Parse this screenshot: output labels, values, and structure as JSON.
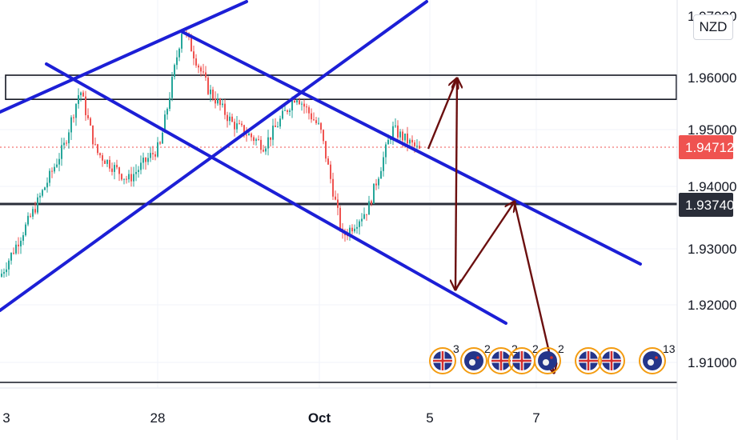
{
  "symbol_currency": "NZD",
  "colors": {
    "up": "#26a69a",
    "down": "#ef5350",
    "channel": "#1c1fd6",
    "arrow": "#6b0f0f",
    "price_tag": "#ef5350",
    "level_tag": "#2a2e39",
    "grid": "#f0f3fa"
  },
  "chart_data": {
    "type": "candlestick",
    "instrument_currency": "NZD",
    "y_axis": {
      "ticks": [
        "1.96000",
        "1.95000",
        "1.94000",
        "1.93000",
        "1.92000",
        "1.91000"
      ],
      "partially_hidden_ticks": [
        "1.97000"
      ],
      "range": [
        1.9055,
        1.9745
      ]
    },
    "x_axis": {
      "ticks": [
        "3",
        "28",
        "Oct",
        "5",
        "7"
      ]
    },
    "current_price": "1.94712",
    "horizontal_levels": [
      {
        "value": "1.93740",
        "labeled": true
      },
      {
        "value": 1.906,
        "labeled": false
      }
    ],
    "resistance_zone": [
      1.9566,
      1.96
    ],
    "price_path_approx": [
      [
        0,
        1.925
      ],
      [
        40,
        1.936
      ],
      [
        80,
        1.948
      ],
      [
        100,
        1.958
      ],
      [
        120,
        1.947
      ],
      [
        160,
        1.942
      ],
      [
        200,
        1.948
      ],
      [
        228,
        1.969
      ],
      [
        260,
        1.958
      ],
      [
        290,
        1.952
      ],
      [
        330,
        1.948
      ],
      [
        370,
        1.957
      ],
      [
        400,
        1.951
      ],
      [
        428,
        1.932
      ],
      [
        460,
        1.937
      ],
      [
        490,
        1.951
      ],
      [
        525,
        1.947
      ]
    ],
    "projection_arrows": "drawn",
    "events": [
      {
        "flag": "GB",
        "count": "3"
      },
      {
        "flag": "NZ",
        "count": "2"
      },
      {
        "flag": "GB",
        "count": "2"
      },
      {
        "flag": "GB",
        "count": "2"
      },
      {
        "flag": "NZ",
        "count": "2"
      },
      {
        "flag": "GB",
        "count": ""
      },
      {
        "flag": "GB",
        "count": ""
      },
      {
        "flag": "NZ",
        "count": "13"
      }
    ]
  }
}
